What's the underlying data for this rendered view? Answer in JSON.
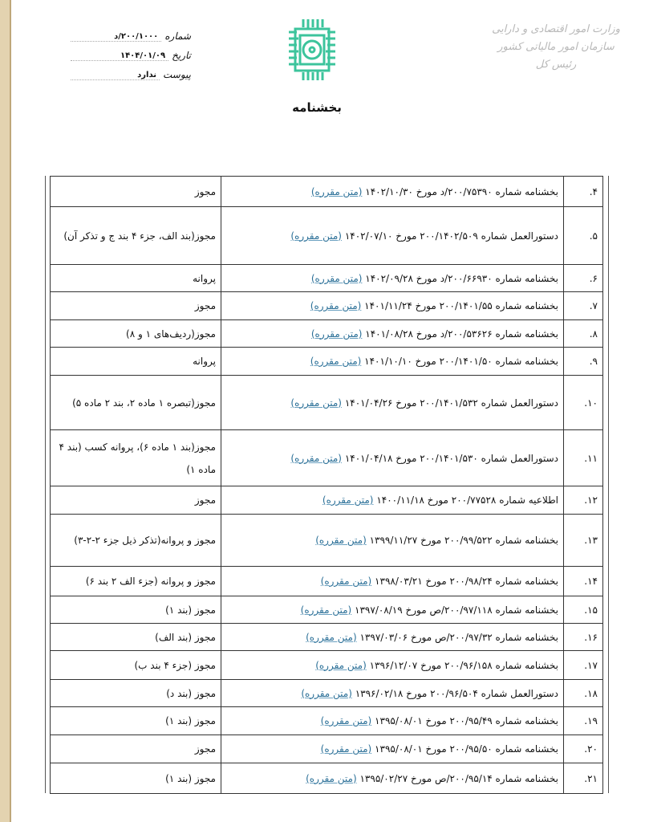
{
  "header": {
    "ministry_lines": [
      "وزارت امور اقتصادی و دارایی",
      "سازمان امور مالیاتی کشور",
      "رئیس کل"
    ],
    "number_label": "شماره",
    "number_value": "۲۰۰/۱۰۰۰/د",
    "date_label": "تاریخ",
    "date_value": "۱۴۰۴/۰۱/۰۹",
    "attachment_label": "پیوست",
    "attachment_value": "ندارد",
    "logo_color": "#3cc49c"
  },
  "title": "بخشنامه",
  "link_color": "#2a6f97",
  "rows": [
    {
      "num": "۴.",
      "text": "بخشنامه شماره ۲۰۰/۷۵۳۹۰/د مورخ ۱۴۰۲/۱۰/۳۰",
      "link": "(متن مقرره)",
      "note": "مجوز"
    },
    {
      "num": "۵.",
      "text": "دستورالعمل شماره ۲۰۰/۱۴۰۲/۵۰۹ مورخ ۱۴۰۲/۰۷/۱۰",
      "link": "(متن مقرره)",
      "note": "مجوز(بند الف، جزء ۴ بند ج و تذکر آن)"
    },
    {
      "num": "۶.",
      "text": "بخشنامه شماره ۲۰۰/۶۶۹۳۰/د مورخ ۱۴۰۲/۰۹/۲۸",
      "link": "(متن مقرره)",
      "note": "پروانه"
    },
    {
      "num": "۷.",
      "text": "بخشنامه شماره ۲۰۰/۱۴۰۱/۵۵ مورخ ۱۴۰۱/۱۱/۲۴",
      "link": "(متن مقرره)",
      "note": "مجوز"
    },
    {
      "num": "۸.",
      "text": "بخشنامه شماره ۲۰۰/۵۳۶۲۶/د مورخ ۱۴۰۱/۰۸/۲۸",
      "link": "(متن مقرره)",
      "note": "مجوز(ردیف‌های ۱ و ۸)"
    },
    {
      "num": "۹.",
      "text": "بخشنامه شماره ۲۰۰/۱۴۰۱/۵۰ مورخ ۱۴۰۱/۱۰/۱۰",
      "link": "(متن مقرره)",
      "note": "پروانه"
    },
    {
      "num": "۱۰.",
      "text": "دستورالعمل شماره ۲۰۰/۱۴۰۱/۵۳۲ مورخ ۱۴۰۱/۰۴/۲۶",
      "link": "(متن مقرره)",
      "note": "مجوز(تبصره ۱ ماده ۲، بند ۲ ماده ۵)"
    },
    {
      "num": "۱۱.",
      "text": "دستورالعمل شماره ۲۰۰/۱۴۰۱/۵۳۰ مورخ ۱۴۰۱/۰۴/۱۸",
      "link": "(متن مقرره)",
      "note": "مجوز(بند ۱ ماده ۶)، پروانه کسب (بند ۴ ماده ۱)"
    },
    {
      "num": "۱۲.",
      "text": "اطلاعیه شماره ۲۰۰/۷۷۵۲۸ مورخ ۱۴۰۰/۱۱/۱۸",
      "link": "(متن مقرره)",
      "note": "مجوز"
    },
    {
      "num": "۱۳.",
      "text": "بخشنامه شماره ۲۰۰/۹۹/۵۲۲ مورخ ۱۳۹۹/۱۱/۲۷",
      "link": "(متن مقرره)",
      "note": "مجوز و پروانه(تذکر ذیل جزء ۲-۲-۳)"
    },
    {
      "num": "۱۴.",
      "text": "بخشنامه شماره ۲۰۰/۹۸/۲۴ مورخ ۱۳۹۸/۰۳/۲۱",
      "link": "(متن مقرره)",
      "note": "مجوز و پروانه (جزء الف ۲ بند ۶)"
    },
    {
      "num": "۱۵.",
      "text": "بخشنامه شماره ۲۰۰/۹۷/۱۱۸/ص مورخ ۱۳۹۷/۰۸/۱۹",
      "link": "(متن مقرره)",
      "note": "مجوز (بند ۱)"
    },
    {
      "num": "۱۶.",
      "text": "بخشنامه شماره ۲۰۰/۹۷/۳۲/ص مورخ ۱۳۹۷/۰۳/۰۶",
      "link": "(متن مقرره)",
      "note": "مجوز (بند الف)"
    },
    {
      "num": "۱۷.",
      "text": "بخشنامه شماره ۲۰۰/۹۶/۱۵۸ مورخ ۱۳۹۶/۱۲/۰۷",
      "link": "(متن مقرره)",
      "note": "مجوز (جزء ۴ بند ب)"
    },
    {
      "num": "۱۸.",
      "text": "دستورالعمل شماره ۲۰۰/۹۶/۵۰۴ مورخ ۱۳۹۶/۰۲/۱۸",
      "link": "(متن مقرره)",
      "note": "مجوز (بند د)"
    },
    {
      "num": "۱۹.",
      "text": "بخشنامه شماره ۲۰۰/۹۵/۴۹ مورخ ۱۳۹۵/۰۸/۰۱",
      "link": "(متن مقرره)",
      "note": "مجوز (بند ۱)"
    },
    {
      "num": "۲۰.",
      "text": "بخشنامه شماره ۲۰۰/۹۵/۵۰ مورخ ۱۳۹۵/۰۸/۰۱",
      "link": "(متن مقرره)",
      "note": "مجوز"
    },
    {
      "num": "۲۱.",
      "text": "بخشنامه شماره ۲۰۰/۹۵/۱۴/ص مورخ ۱۳۹۵/۰۲/۲۷",
      "link": "(متن مقرره)",
      "note": "مجوز (بند ۱)"
    }
  ]
}
